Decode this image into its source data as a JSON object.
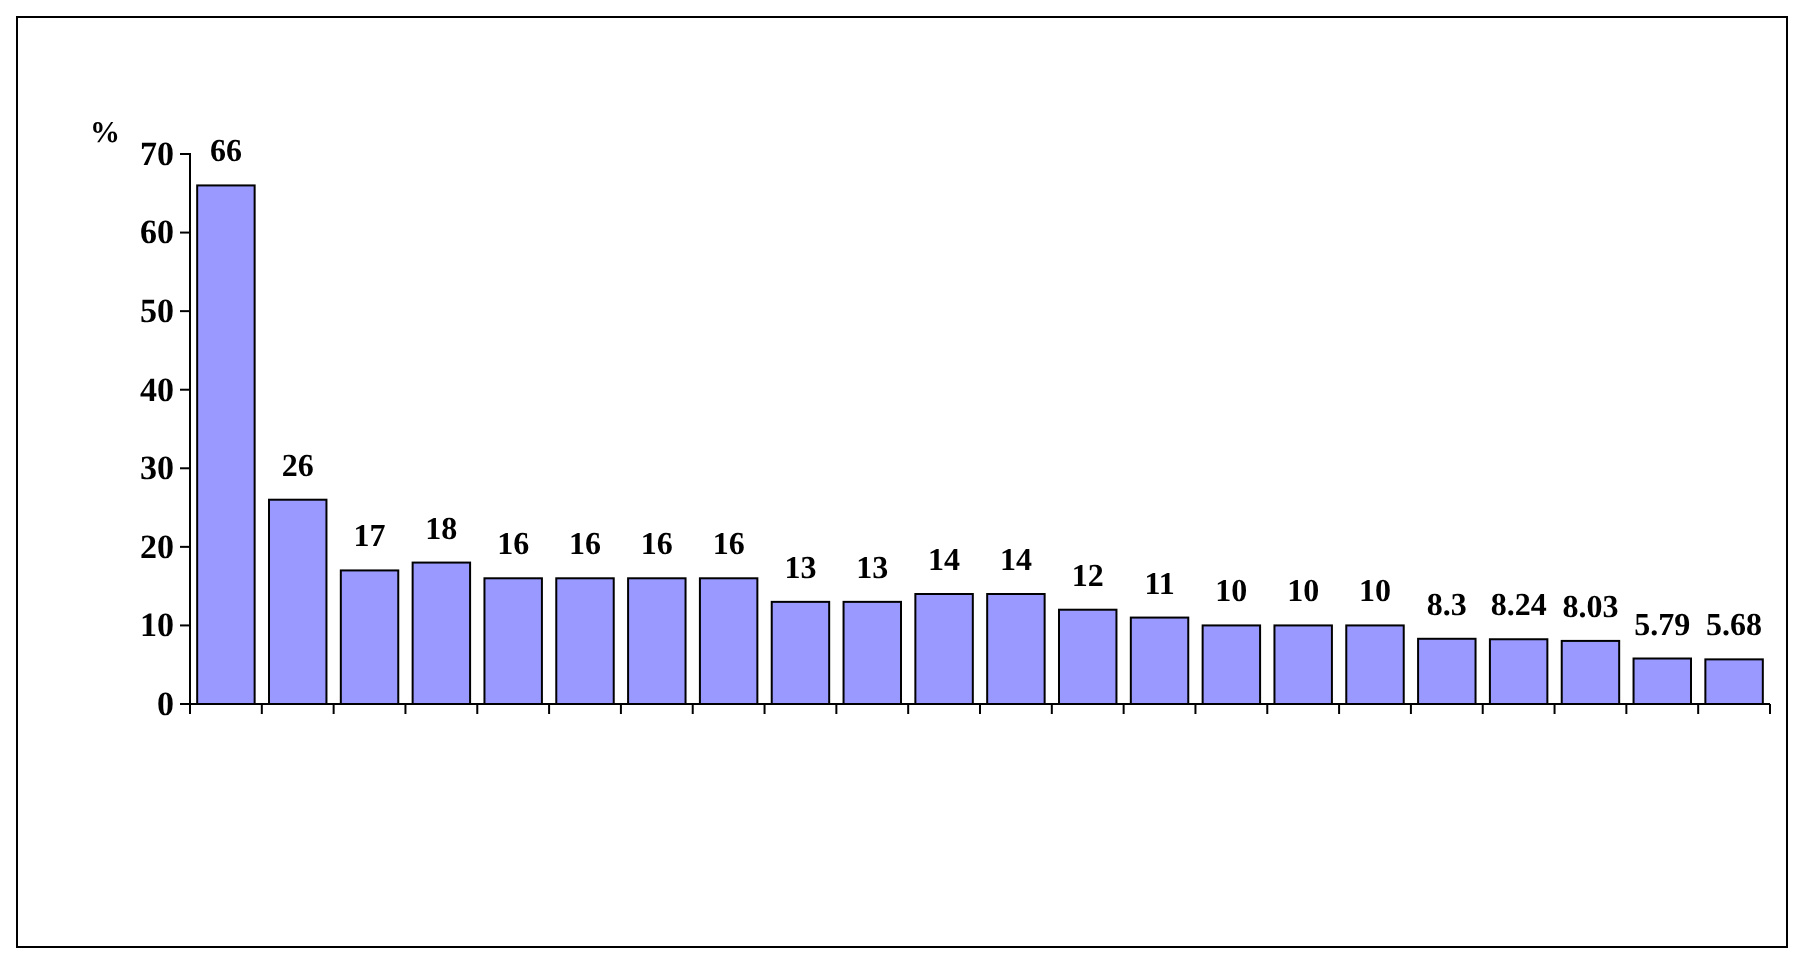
{
  "chart_data": {
    "type": "bar",
    "ylabel": "%",
    "categories": [
      null,
      null,
      null,
      null,
      null,
      null,
      null,
      null,
      null,
      null,
      null,
      null,
      null,
      null,
      null,
      null,
      null,
      null,
      null,
      null,
      null,
      null
    ],
    "values": [
      66,
      26,
      17,
      18,
      16,
      16,
      16,
      16,
      13,
      13,
      14,
      14,
      12,
      11,
      10,
      10,
      10,
      8.3,
      8.24,
      8.03,
      5.79,
      5.68
    ],
    "color": "#9999ff",
    "ylim": [
      0,
      70
    ],
    "yticks": [
      0,
      10,
      20,
      30,
      40,
      50,
      60,
      70
    ],
    "data_labels": true
  }
}
